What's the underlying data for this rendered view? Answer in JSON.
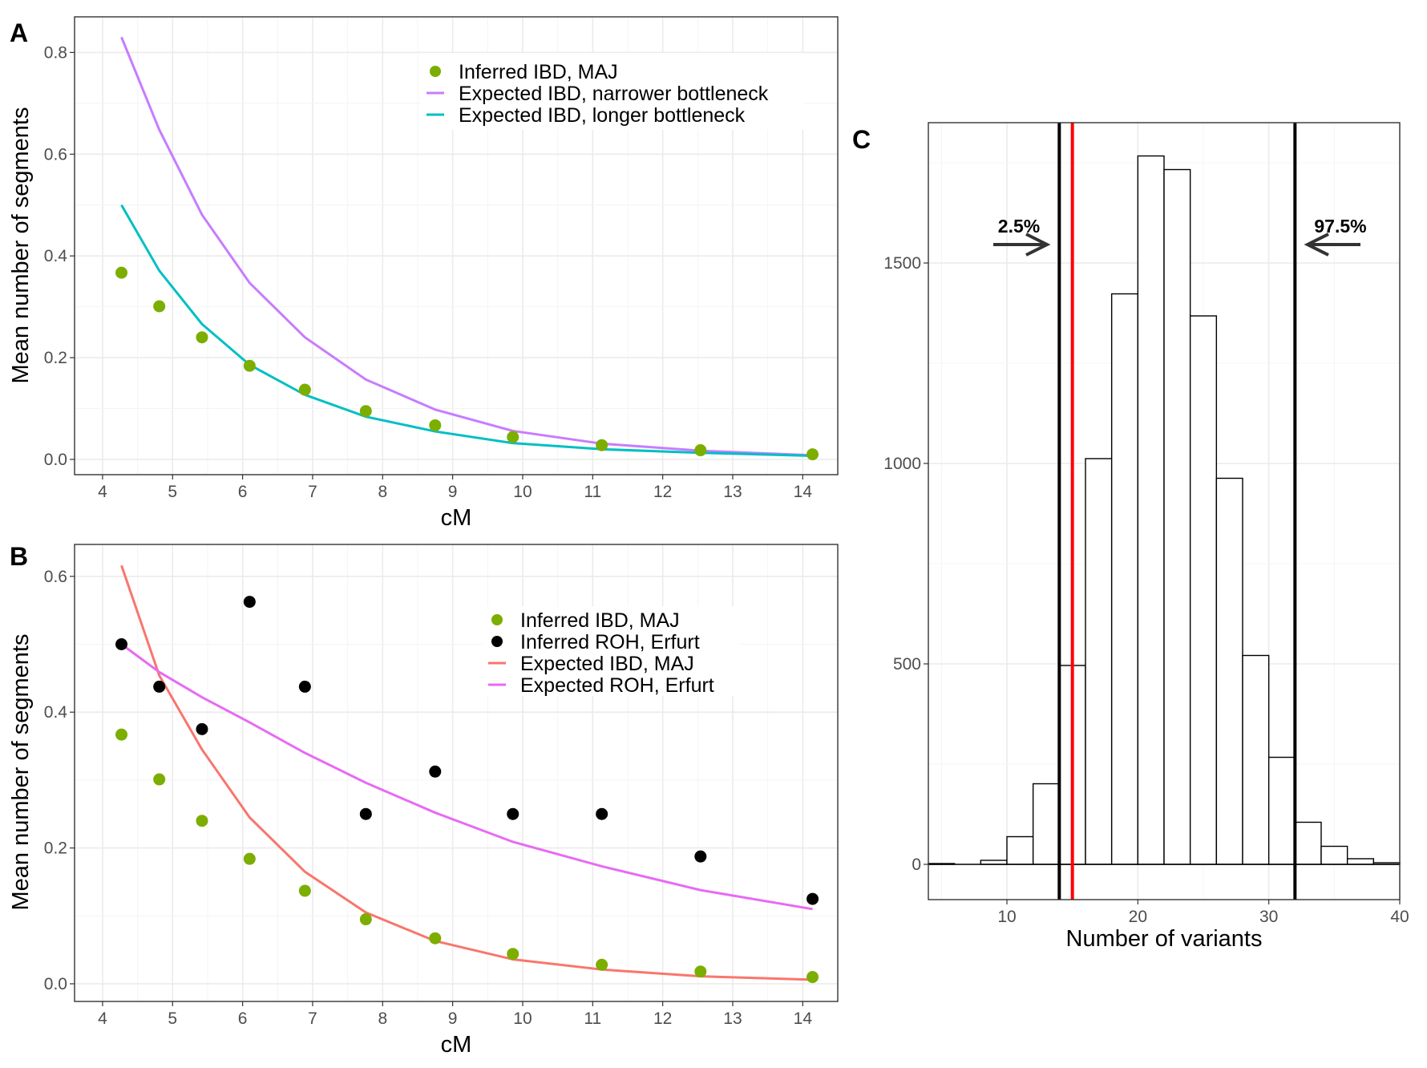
{
  "chart_data": [
    {
      "panel_label": "A",
      "type": "line",
      "xlabel": "cM",
      "ylabel": "Mean number of segments",
      "xlim": [
        3.6,
        14.5
      ],
      "ylim": [
        -0.03,
        0.87
      ],
      "xticks": [
        4,
        5,
        6,
        7,
        8,
        9,
        10,
        11,
        12,
        13,
        14
      ],
      "yticks": [
        0.0,
        0.2,
        0.4,
        0.6,
        0.8
      ],
      "ytick_labels": [
        "0.0",
        "0.2",
        "0.4",
        "0.6",
        "0.8"
      ],
      "grid": true,
      "legend_position": "top-right",
      "x": [
        4.27,
        4.81,
        5.42,
        6.1,
        6.89,
        7.76,
        8.75,
        9.86,
        11.13,
        12.54,
        14.14
      ],
      "series": [
        {
          "name": "Inferred IBD, MAJ",
          "kind": "points",
          "color": "#7CAE00",
          "values": [
            0.367,
            0.301,
            0.24,
            0.184,
            0.137,
            0.095,
            0.067,
            0.044,
            0.028,
            0.018,
            0.01
          ]
        },
        {
          "name": "Expected IBD, narrower bottleneck",
          "kind": "line",
          "color": "#C77CFF",
          "values": [
            0.83,
            0.648,
            0.481,
            0.347,
            0.24,
            0.157,
            0.098,
            0.056,
            0.031,
            0.017,
            0.008
          ]
        },
        {
          "name": "Expected IBD, longer bottleneck",
          "kind": "line",
          "color": "#00BFC4",
          "values": [
            0.5,
            0.371,
            0.266,
            0.186,
            0.127,
            0.084,
            0.055,
            0.032,
            0.02,
            0.013,
            0.007
          ]
        }
      ]
    },
    {
      "panel_label": "B",
      "type": "line",
      "xlabel": "cM",
      "ylabel": "Mean number of segments",
      "xlim": [
        3.6,
        14.5
      ],
      "ylim": [
        -0.026,
        0.647
      ],
      "xticks": [
        4,
        5,
        6,
        7,
        8,
        9,
        10,
        11,
        12,
        13,
        14
      ],
      "yticks": [
        0.0,
        0.2,
        0.4,
        0.6
      ],
      "ytick_labels": [
        "0.0",
        "0.2",
        "0.4",
        "0.6"
      ],
      "grid": true,
      "legend_position": "top-right",
      "x": [
        4.27,
        4.81,
        5.42,
        6.1,
        6.89,
        7.76,
        8.75,
        9.86,
        11.13,
        12.54,
        14.14
      ],
      "series": [
        {
          "name": "Inferred IBD, MAJ",
          "kind": "points",
          "color": "#7CAE00",
          "values": [
            0.367,
            0.301,
            0.24,
            0.184,
            0.137,
            0.095,
            0.067,
            0.044,
            0.028,
            0.018,
            0.01
          ]
        },
        {
          "name": "Inferred ROH, Erfurt",
          "kind": "points",
          "color": "#000000",
          "values": [
            0.5,
            0.4375,
            0.375,
            0.5625,
            0.4375,
            0.25,
            0.3125,
            0.25,
            0.25,
            0.1875,
            0.125
          ]
        },
        {
          "name": "Expected IBD, MAJ",
          "kind": "line",
          "color": "#F8766D",
          "values": [
            0.616,
            0.454,
            0.345,
            0.245,
            0.165,
            0.105,
            0.063,
            0.036,
            0.021,
            0.011,
            0.006
          ]
        },
        {
          "name": "Expected ROH, Erfurt",
          "kind": "line",
          "color": "#E76BF3",
          "values": [
            0.5,
            0.459,
            0.422,
            0.385,
            0.34,
            0.296,
            0.252,
            0.209,
            0.173,
            0.138,
            0.11
          ]
        }
      ]
    },
    {
      "panel_label": "C",
      "type": "bar",
      "xlabel": "Number of variants",
      "ylabel": "",
      "xlim": [
        4,
        40
      ],
      "ylim": [
        -88,
        1850
      ],
      "xticks": [
        10,
        20,
        30,
        40
      ],
      "yticks": [
        0,
        500,
        1000,
        1500
      ],
      "ytick_labels": [
        "0",
        "500",
        "1000",
        "1500"
      ],
      "grid": true,
      "bin_edges": [
        4,
        6,
        8,
        10,
        12,
        14,
        16,
        18,
        20,
        22,
        24,
        26,
        28,
        30,
        32,
        34,
        36,
        38,
        40
      ],
      "counts": [
        2,
        0,
        10,
        69,
        201,
        496,
        1012,
        1423,
        1767,
        1733,
        1368,
        963,
        521,
        267,
        105,
        45,
        14,
        4
      ],
      "vlines": [
        {
          "x": 14,
          "color": "#000000"
        },
        {
          "x": 32,
          "color": "#000000"
        },
        {
          "x": 15,
          "color": "#FF0000"
        }
      ],
      "annotations": [
        {
          "text": "2.5%",
          "arrow": "right"
        },
        {
          "text": "97.5%",
          "arrow": "left"
        }
      ]
    }
  ]
}
